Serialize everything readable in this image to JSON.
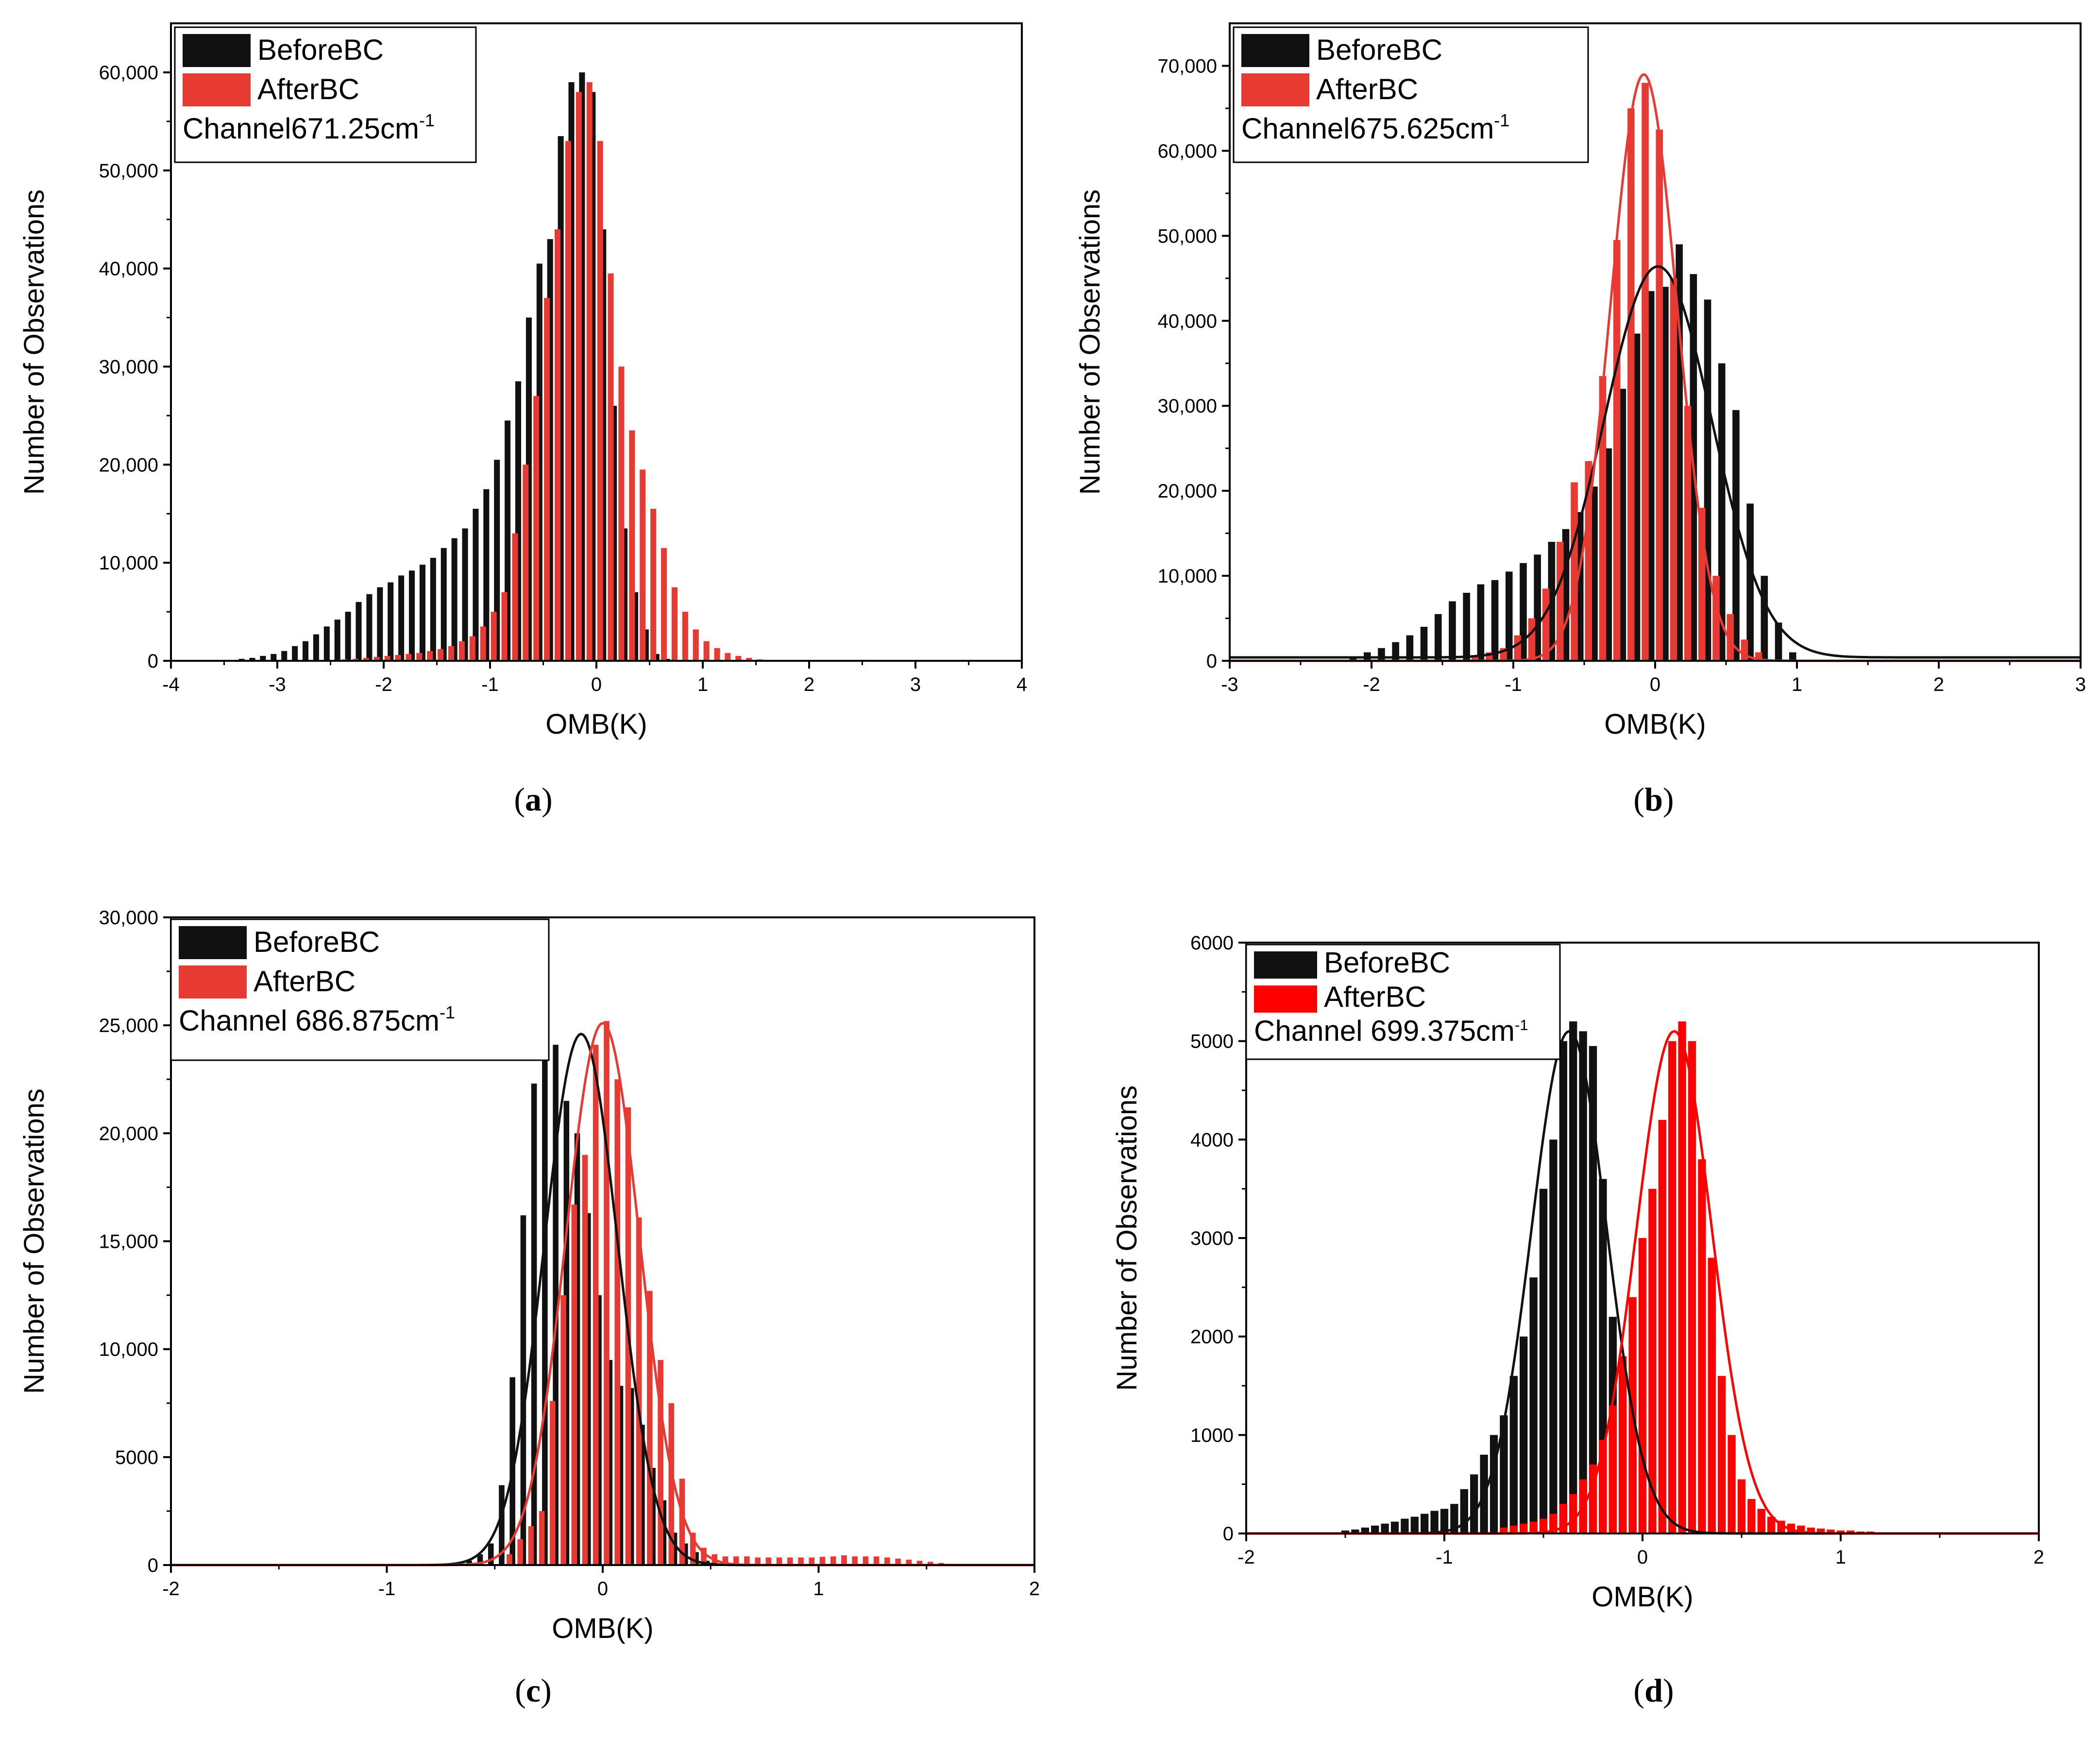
{
  "colors": {
    "before": "#111111",
    "after": "#e63a32",
    "after_bright": "#ff0000",
    "axis": "#000000"
  },
  "panels": [
    {
      "caption": "(a)",
      "caption_letter": "a",
      "chart_data": {
        "type": "bar",
        "title": "",
        "xlabel": "OMB(K)",
        "ylabel": "Number of Observations",
        "xlim": [
          -4,
          4
        ],
        "ylim": [
          0,
          65000
        ],
        "xticks": [
          -4,
          -3,
          -2,
          -1,
          0,
          1,
          2,
          3,
          4
        ],
        "xtick_labels": [
          "-4",
          "-3",
          "-2",
          "-1",
          "0",
          "1",
          "2",
          "3",
          "4"
        ],
        "yticks": [
          0,
          10000,
          20000,
          30000,
          40000,
          50000,
          60000
        ],
        "ytick_labels": [
          "0",
          "10,000",
          "20,000",
          "30,000",
          "40,000",
          "50,000",
          "60,000"
        ],
        "bin_width": 0.1,
        "bar_offset": 0.035,
        "bar_width": 0.055,
        "legend": {
          "before": "BeforeBC",
          "after": "AfterBC",
          "channel_prefix": "Channel671.25cm",
          "channel_sup": "-1"
        },
        "series": [
          {
            "name": "BeforeBC",
            "x": [
              -3.4,
              -3.3,
              -3.2,
              -3.1,
              -3.0,
              -2.9,
              -2.8,
              -2.7,
              -2.6,
              -2.5,
              -2.4,
              -2.3,
              -2.2,
              -2.1,
              -2.0,
              -1.9,
              -1.8,
              -1.7,
              -1.6,
              -1.5,
              -1.4,
              -1.3,
              -1.2,
              -1.1,
              -1.0,
              -0.9,
              -0.8,
              -0.7,
              -0.6,
              -0.5,
              -0.4,
              -0.3,
              -0.2,
              -0.1,
              0.0,
              0.1,
              0.2,
              0.3,
              0.4,
              0.5,
              0.6,
              0.7
            ],
            "values": [
              100,
              200,
              300,
              500,
              700,
              1000,
              1500,
              2000,
              2700,
              3500,
              4200,
              5000,
              6000,
              6800,
              7500,
              8000,
              8700,
              9200,
              9800,
              10500,
              11500,
              12500,
              13500,
              15500,
              17500,
              20500,
              24500,
              28500,
              35000,
              40500,
              43000,
              53500,
              59000,
              60000,
              58000,
              44000,
              26000,
              13500,
              7000,
              3200,
              700,
              200
            ]
          },
          {
            "name": "AfterBC",
            "x": [
              -2.6,
              -2.5,
              -2.4,
              -2.3,
              -2.2,
              -2.1,
              -2.0,
              -1.9,
              -1.8,
              -1.7,
              -1.6,
              -1.5,
              -1.4,
              -1.3,
              -1.2,
              -1.1,
              -1.0,
              -0.9,
              -0.8,
              -0.7,
              -0.6,
              -0.5,
              -0.4,
              -0.3,
              -0.2,
              -0.1,
              0.0,
              0.1,
              0.2,
              0.3,
              0.4,
              0.5,
              0.6,
              0.7,
              0.8,
              0.9,
              1.0,
              1.1,
              1.2,
              1.3,
              1.4,
              1.5,
              1.6
            ],
            "values": [
              50,
              100,
              150,
              200,
              300,
              400,
              500,
              600,
              700,
              800,
              1000,
              1200,
              1500,
              2000,
              2500,
              3500,
              5000,
              7000,
              13000,
              20000,
              27000,
              37000,
              44000,
              53000,
              58000,
              59000,
              53000,
              39500,
              30000,
              23500,
              19500,
              15500,
              11500,
              7500,
              5000,
              3200,
              2000,
              1300,
              800,
              500,
              300,
              150,
              80
            ]
          }
        ]
      }
    },
    {
      "caption": "(b)",
      "caption_letter": "b",
      "chart_data": {
        "type": "bar",
        "title": "",
        "xlabel": "OMB(K)",
        "ylabel": "Number of Observations",
        "xlim": [
          -3,
          3
        ],
        "ylim": [
          0,
          75000
        ],
        "xticks": [
          -3,
          -2,
          -1,
          0,
          1,
          2,
          3
        ],
        "xtick_labels": [
          "-3",
          "-2",
          "-1",
          "0",
          "1",
          "2",
          "3"
        ],
        "yticks": [
          0,
          10000,
          20000,
          30000,
          40000,
          50000,
          60000,
          70000
        ],
        "ytick_labels": [
          "0",
          "10,000",
          "20,000",
          "30,000",
          "40,000",
          "50,000",
          "60,000",
          "70,000"
        ],
        "bin_width": 0.1,
        "bar_offset": 0.03,
        "bar_width": 0.05,
        "legend": {
          "before": "BeforeBC",
          "after": "AfterBC",
          "channel_prefix": "Channel675.625cm",
          "channel_sup": "-1"
        },
        "series": [
          {
            "name": "BeforeBC",
            "x": [
              -2.1,
              -2.0,
              -1.9,
              -1.8,
              -1.7,
              -1.6,
              -1.5,
              -1.4,
              -1.3,
              -1.2,
              -1.1,
              -1.0,
              -0.9,
              -0.8,
              -0.7,
              -0.6,
              -0.5,
              -0.4,
              -0.3,
              -0.2,
              -0.1,
              0.0,
              0.1,
              0.2,
              0.3,
              0.4,
              0.5,
              0.6,
              0.7,
              0.8,
              0.9,
              1.0
            ],
            "values": [
              500,
              1000,
              1500,
              2200,
              3000,
              4000,
              5500,
              7000,
              8000,
              9000,
              9500,
              10500,
              11500,
              12500,
              14000,
              15500,
              17500,
              20500,
              25000,
              32000,
              38500,
              43500,
              44000,
              49000,
              45500,
              42500,
              35000,
              29500,
              18500,
              10000,
              4500,
              1000
            ]
          },
          {
            "name": "AfterBC",
            "x": [
              -1.3,
              -1.2,
              -1.1,
              -1.0,
              -0.9,
              -0.8,
              -0.7,
              -0.6,
              -0.5,
              -0.4,
              -0.3,
              -0.2,
              -0.1,
              0.0,
              0.1,
              0.2,
              0.3,
              0.4,
              0.5,
              0.6,
              0.7
            ],
            "values": [
              500,
              1000,
              1500,
              3000,
              5000,
              8500,
              14000,
              21000,
              23500,
              33500,
              49500,
              65000,
              68000,
              62500,
              45000,
              30000,
              18000,
              10000,
              5500,
              2500,
              1000
            ]
          }
        ],
        "fits": [
          {
            "name": "BeforeBC fit",
            "mu": 0.02,
            "sigma": 0.38,
            "amplitude": 46000,
            "baseline": 400
          },
          {
            "name": "AfterBC fit",
            "mu": -0.08,
            "sigma": 0.235,
            "amplitude": 69000,
            "baseline": 0
          }
        ]
      }
    },
    {
      "caption": "(c)",
      "caption_letter": "c",
      "chart_data": {
        "type": "bar",
        "title": "",
        "xlabel": "OMB(K)",
        "ylabel": "Number of Observations",
        "xlim": [
          -2,
          2
        ],
        "ylim": [
          0,
          30000
        ],
        "xticks": [
          -2,
          -1,
          0,
          1,
          2
        ],
        "xtick_labels": [
          "-2",
          "-1",
          "0",
          "1",
          "2"
        ],
        "yticks": [
          0,
          5000,
          10000,
          15000,
          20000,
          25000,
          30000
        ],
        "ytick_labels": [
          "0",
          "5000",
          "10,000",
          "15,000",
          "20,000",
          "25,000",
          "30,000"
        ],
        "bin_width": 0.05,
        "bar_offset": 0.018,
        "bar_width": 0.026,
        "legend": {
          "before": "BeforeBC",
          "after": "AfterBC",
          "channel_prefix": "Channel 686.875cm",
          "channel_sup": "-1"
        },
        "series": [
          {
            "name": "BeforeBC",
            "x": [
              -0.6,
              -0.55,
              -0.5,
              -0.45,
              -0.4,
              -0.35,
              -0.3,
              -0.25,
              -0.2,
              -0.15,
              -0.1,
              -0.05,
              0.0,
              0.05,
              0.1,
              0.15,
              0.2,
              0.25,
              0.3,
              0.35,
              0.4,
              0.45,
              0.5
            ],
            "values": [
              200,
              500,
              1000,
              3700,
              8700,
              16200,
              22300,
              24300,
              24100,
              21500,
              20000,
              16300,
              12500,
              9500,
              8300,
              8200,
              6500,
              4500,
              3000,
              1500,
              1000,
              600,
              200
            ]
          },
          {
            "name": "AfterBC",
            "x": [
              -0.45,
              -0.4,
              -0.35,
              -0.3,
              -0.25,
              -0.2,
              -0.15,
              -0.1,
              -0.05,
              0.0,
              0.05,
              0.1,
              0.15,
              0.2,
              0.25,
              0.3,
              0.35,
              0.4,
              0.45,
              0.5,
              0.55,
              0.6,
              0.65,
              0.7,
              0.75,
              0.8,
              0.85,
              0.9,
              0.95,
              1.0,
              1.05,
              1.1,
              1.15,
              1.2,
              1.25,
              1.3,
              1.35,
              1.4,
              1.45,
              1.5,
              1.55
            ],
            "values": [
              500,
              1200,
              1800,
              2500,
              7600,
              12500,
              16700,
              19000,
              24100,
              25200,
              22500,
              21200,
              16100,
              12700,
              9500,
              7500,
              4000,
              1500,
              800,
              500,
              400,
              400,
              400,
              350,
              350,
              350,
              350,
              350,
              350,
              380,
              400,
              450,
              400,
              400,
              400,
              350,
              300,
              250,
              200,
              150,
              100
            ]
          }
        ],
        "fits": [
          {
            "name": "BeforeBC fit",
            "mu": -0.1,
            "sigma": 0.17,
            "amplitude": 24600,
            "baseline": 0
          },
          {
            "name": "AfterBC fit",
            "mu": 0.0,
            "sigma": 0.17,
            "amplitude": 25100,
            "baseline": 0
          }
        ]
      }
    },
    {
      "caption": "(d)",
      "caption_letter": "d",
      "chart_data": {
        "type": "bar",
        "title": "",
        "xlabel": "OMB(K)",
        "ylabel": "Number of Observations",
        "xlim": [
          -2,
          2
        ],
        "ylim": [
          0,
          6000
        ],
        "xticks": [
          -2,
          -1,
          0,
          1,
          2
        ],
        "xtick_labels": [
          "-2",
          "-1",
          "0",
          "1",
          "2"
        ],
        "yticks": [
          0,
          1000,
          2000,
          3000,
          4000,
          5000,
          6000
        ],
        "ytick_labels": [
          "0",
          "1000",
          "2000",
          "3000",
          "4000",
          "5000",
          "6000"
        ],
        "bin_width": 0.05,
        "bar_offset": 0.0,
        "bar_width": 0.04,
        "legend": {
          "before": "BeforeBC",
          "after": "AfterBC",
          "channel_prefix": "Channel 699.375cm",
          "channel_sup": "-1"
        },
        "series": [
          {
            "name": "BeforeBC",
            "x": [
              -1.5,
              -1.45,
              -1.4,
              -1.35,
              -1.3,
              -1.25,
              -1.2,
              -1.15,
              -1.1,
              -1.05,
              -1.0,
              -0.95,
              -0.9,
              -0.85,
              -0.8,
              -0.75,
              -0.7,
              -0.65,
              -0.6,
              -0.55,
              -0.5,
              -0.45,
              -0.4,
              -0.35,
              -0.3,
              -0.25,
              -0.2,
              -0.15,
              -0.1,
              -0.05,
              0.0,
              0.05
            ],
            "values": [
              30,
              40,
              60,
              80,
              100,
              120,
              150,
              170,
              200,
              230,
              250,
              300,
              450,
              600,
              800,
              1000,
              1200,
              1600,
              2000,
              2600,
              3500,
              4000,
              5000,
              5200,
              5100,
              4950,
              3600,
              2200,
              1400,
              800,
              400,
              150
            ]
          },
          {
            "name": "AfterBC",
            "x": [
              -0.7,
              -0.65,
              -0.6,
              -0.55,
              -0.5,
              -0.45,
              -0.4,
              -0.35,
              -0.3,
              -0.25,
              -0.2,
              -0.15,
              -0.1,
              -0.05,
              0.0,
              0.05,
              0.1,
              0.15,
              0.2,
              0.25,
              0.3,
              0.35,
              0.4,
              0.45,
              0.5,
              0.55,
              0.6,
              0.65,
              0.7,
              0.75,
              0.8,
              0.85,
              0.9,
              0.95,
              1.0,
              1.05,
              1.1,
              1.15
            ],
            "values": [
              60,
              80,
              100,
              120,
              150,
              200,
              300,
              400,
              550,
              700,
              950,
              1300,
              1800,
              2400,
              3000,
              3500,
              4200,
              5000,
              5200,
              5000,
              3800,
              2800,
              1600,
              1000,
              550,
              350,
              250,
              170,
              130,
              100,
              80,
              60,
              50,
              40,
              30,
              30,
              20,
              20
            ]
          }
        ],
        "fits": [
          {
            "name": "BeforeBC fit",
            "mu": -0.37,
            "sigma": 0.19,
            "amplitude": 5100,
            "baseline": 0
          },
          {
            "name": "AfterBC fit",
            "mu": 0.16,
            "sigma": 0.19,
            "amplitude": 5100,
            "baseline": 0
          }
        ]
      }
    }
  ]
}
